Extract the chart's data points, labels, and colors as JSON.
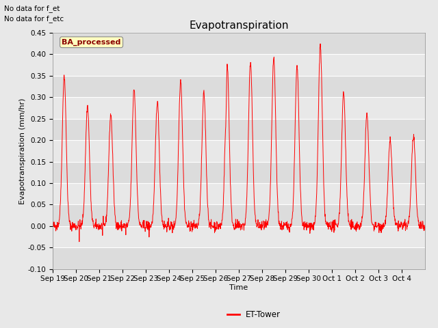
{
  "title": "Evapotranspiration",
  "xlabel": "Time",
  "ylabel": "Evapotranspiration (mm/hr)",
  "ylim": [
    -0.1,
    0.45
  ],
  "yticks": [
    -0.1,
    -0.05,
    0.0,
    0.05,
    0.1,
    0.15,
    0.2,
    0.25,
    0.3,
    0.35,
    0.4,
    0.45
  ],
  "line_color": "red",
  "fig_facecolor": "#e8e8e8",
  "plot_bg_color": "#e8e8e8",
  "annotation_text1": "No data for f_et",
  "annotation_text2": "No data for f_etc",
  "box_label": "BA_processed",
  "legend_label": "ET-Tower",
  "tick_labels": [
    "Sep 19",
    "Sep 20",
    "Sep 21",
    "Sep 22",
    "Sep 23",
    "Sep 24",
    "Sep 25",
    "Sep 26",
    "Sep 27",
    "Sep 28",
    "Sep 29",
    "Sep 30",
    "Oct 1",
    "Oct 2",
    "Oct 3",
    "Oct 4"
  ],
  "title_fontsize": 11,
  "label_fontsize": 8,
  "tick_fontsize": 7.5,
  "day_peaks": [
    0.35,
    0.28,
    0.26,
    0.32,
    0.29,
    0.34,
    0.31,
    0.38,
    0.38,
    0.39,
    0.37,
    0.42,
    0.31,
    0.26,
    0.2,
    0.21
  ],
  "n_days": 16,
  "pts_per_day": 96,
  "stripe_colors": [
    "#dcdcdc",
    "#e8e8e8"
  ]
}
